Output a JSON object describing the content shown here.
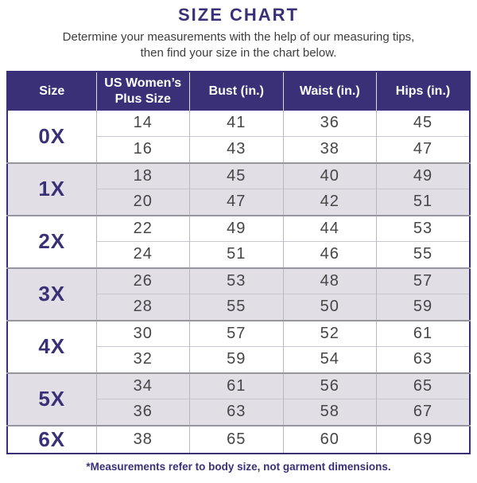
{
  "page": {
    "title": "SIZE CHART",
    "subtitle_line1": "Determine your measurements with the help of our measuring tips,",
    "subtitle_line2": "then find your size in the chart below.",
    "footnote": "*Measurements refer to body size, not garment dimensions."
  },
  "colors": {
    "accent": "#3a3078",
    "band": "#e1dee6",
    "text": "#464646",
    "subtitle": "#3d3d3d",
    "groupline": "#97959d",
    "subline": "#c8c6ce",
    "colline": "#b9b7bf",
    "headline": "#dbd9e8"
  },
  "chart_data": {
    "type": "table",
    "title": "SIZE CHART",
    "columns": [
      "Size",
      "US Women’s Plus Size",
      "Bust (in.)",
      "Waist (in.)",
      "Hips (in.)"
    ],
    "groups": [
      {
        "size": "0X",
        "rows": [
          [
            "14",
            "41",
            "36",
            "45"
          ],
          [
            "16",
            "43",
            "38",
            "47"
          ]
        ]
      },
      {
        "size": "1X",
        "rows": [
          [
            "18",
            "45",
            "40",
            "49"
          ],
          [
            "20",
            "47",
            "42",
            "51"
          ]
        ]
      },
      {
        "size": "2X",
        "rows": [
          [
            "22",
            "49",
            "44",
            "53"
          ],
          [
            "24",
            "51",
            "46",
            "55"
          ]
        ]
      },
      {
        "size": "3X",
        "rows": [
          [
            "26",
            "53",
            "48",
            "57"
          ],
          [
            "28",
            "55",
            "50",
            "59"
          ]
        ]
      },
      {
        "size": "4X",
        "rows": [
          [
            "30",
            "57",
            "52",
            "61"
          ],
          [
            "32",
            "59",
            "54",
            "63"
          ]
        ]
      },
      {
        "size": "5X",
        "rows": [
          [
            "34",
            "61",
            "56",
            "65"
          ],
          [
            "36",
            "63",
            "58",
            "67"
          ]
        ]
      },
      {
        "size": "6X",
        "rows": [
          [
            "38",
            "65",
            "60",
            "69"
          ]
        ]
      }
    ]
  }
}
